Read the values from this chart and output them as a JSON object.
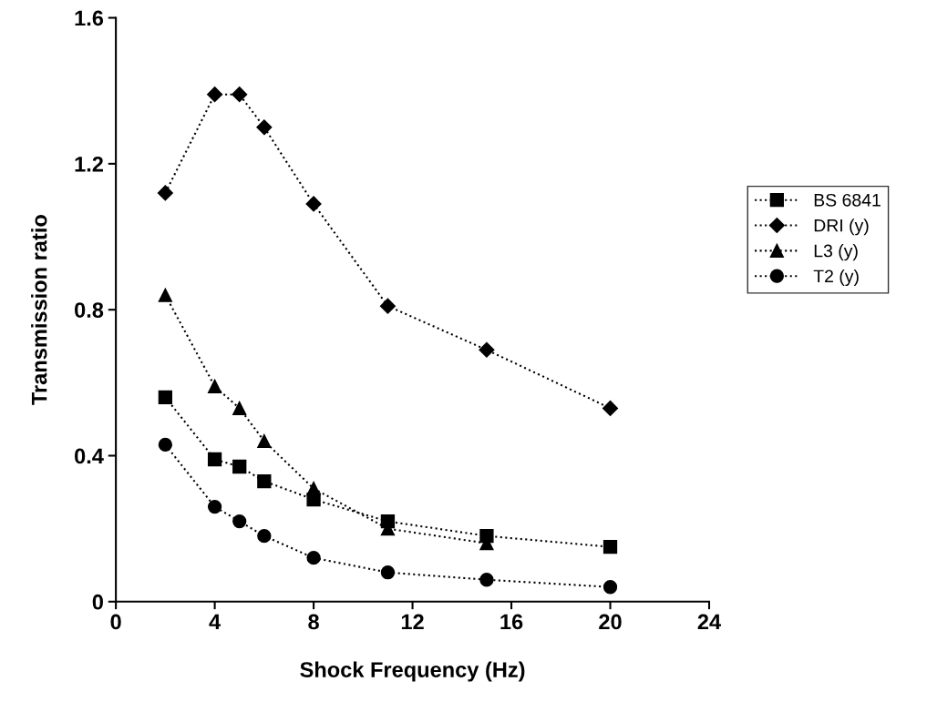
{
  "chart_data": {
    "type": "line",
    "xlabel": "Shock Frequency (Hz)",
    "ylabel": "Transmission ratio",
    "xlim": [
      0,
      24
    ],
    "xticks": [
      0,
      4,
      8,
      12,
      16,
      20,
      24
    ],
    "ylim": [
      0,
      1.6
    ],
    "yticks": [
      0,
      0.4,
      0.8,
      1.2,
      1.6
    ],
    "grid": false,
    "legend": "right",
    "line_style": "dotted",
    "series": [
      {
        "name": "BS 6841",
        "color": "#000000",
        "marker": "square",
        "x": [
          2,
          4,
          5,
          6,
          8,
          11,
          15,
          20
        ],
        "values": [
          0.56,
          0.39,
          0.37,
          0.33,
          0.28,
          0.22,
          0.18,
          0.15
        ]
      },
      {
        "name": "DRI (y)",
        "color": "#000000",
        "marker": "diamond",
        "x": [
          2,
          4,
          5,
          6,
          8,
          11,
          15,
          20
        ],
        "values": [
          1.12,
          1.39,
          1.39,
          1.3,
          1.09,
          0.81,
          0.69,
          0.53
        ]
      },
      {
        "name": "L3 (y)",
        "color": "#000000",
        "marker": "triangle",
        "x": [
          2,
          4,
          5,
          6,
          8,
          11,
          15
        ],
        "values": [
          0.84,
          0.59,
          0.53,
          0.44,
          0.31,
          0.2,
          0.16
        ]
      },
      {
        "name": "T2 (y)",
        "color": "#000000",
        "marker": "circle",
        "x": [
          2,
          4,
          5,
          6,
          8,
          11,
          15,
          20
        ],
        "values": [
          0.43,
          0.26,
          0.22,
          0.18,
          0.12,
          0.08,
          0.06,
          0.04
        ]
      }
    ]
  }
}
